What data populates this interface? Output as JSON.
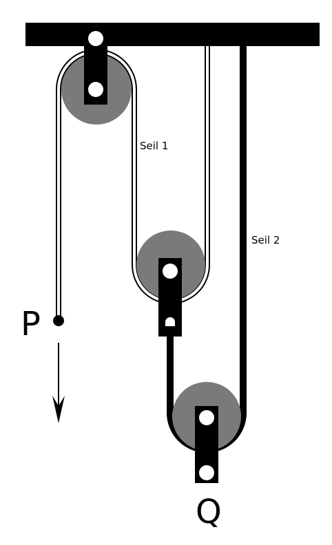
{
  "diagram": {
    "title": "Pulley system with two ropes",
    "labels": {
      "rope1": "Seil 1",
      "rope2": "Seil 2",
      "point_p": "P",
      "load_q": "Q"
    },
    "colors": {
      "background": "#ffffff",
      "beam": "#000000",
      "pulley": "#7a7a7a",
      "bracket": "#000000",
      "rope": "#000000"
    },
    "icons": [
      "ceiling-beam",
      "pulley-icon",
      "arrow-down-icon"
    ]
  }
}
